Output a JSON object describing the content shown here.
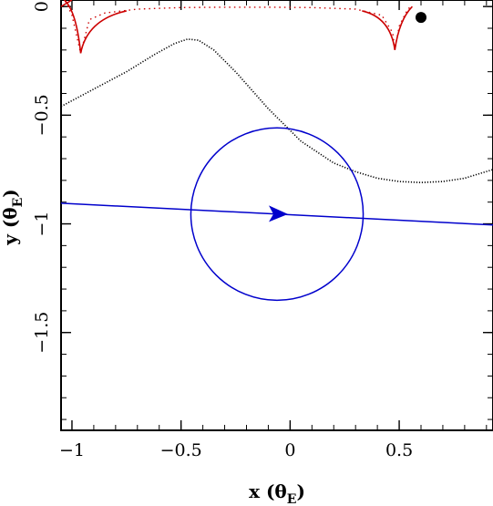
{
  "chart_data": {
    "type": "line",
    "xlabel": "x (θ",
    "xlabel_sub": "E",
    "xlabel_close": ")",
    "ylabel": "y (θ",
    "ylabel_sub": "E",
    "ylabel_close": ")",
    "xlim": [
      -1.05,
      0.93
    ],
    "ylim": [
      -1.95,
      0.03
    ],
    "x_ticks": [
      {
        "value": -1,
        "label": "−1"
      },
      {
        "value": -0.5,
        "label": "−0.5"
      },
      {
        "value": 0,
        "label": "0"
      },
      {
        "value": 0.5,
        "label": "0.5"
      }
    ],
    "y_ticks": [
      {
        "value": 0,
        "label": "0"
      },
      {
        "value": -0.5,
        "label": "−0.5"
      },
      {
        "value": -1,
        "label": "−1"
      },
      {
        "value": -1.5,
        "label": "−1.5"
      }
    ],
    "grid": false,
    "source_trajectory": {
      "color": "#0000cc",
      "x": [
        -1.05,
        0.93
      ],
      "y": [
        -0.905,
        -1.005
      ],
      "arrow_at": [
        -0.06,
        -0.953
      ]
    },
    "source_circle": {
      "color": "#0000cc",
      "center": [
        -0.06,
        -0.955
      ],
      "radius": 0.395
    },
    "caustic": {
      "color": "#cc0000",
      "solid_x": [
        -0.93,
        -0.962,
        -0.965,
        -1.0,
        -1.025,
        -1.03
      ],
      "solid_y": [
        -0.03,
        -0.1,
        -0.21,
        -0.07,
        -0.01,
        0.02
      ],
      "points": [
        {
          "x": -1.03,
          "y": 0.025
        },
        {
          "x": -1.0,
          "y": -0.04
        },
        {
          "x": -0.96,
          "y": -0.215
        },
        {
          "x": -0.92,
          "y": -0.06
        },
        {
          "x": -0.85,
          "y": -0.03
        },
        {
          "x": -0.7,
          "y": -0.012
        },
        {
          "x": -0.5,
          "y": -0.005
        },
        {
          "x": -0.3,
          "y": -0.003
        },
        {
          "x": -0.1,
          "y": -0.003
        },
        {
          "x": 0.1,
          "y": -0.005
        },
        {
          "x": 0.3,
          "y": -0.012
        },
        {
          "x": 0.42,
          "y": -0.04
        },
        {
          "x": 0.47,
          "y": -0.12
        },
        {
          "x": 0.48,
          "y": -0.2
        },
        {
          "x": 0.5,
          "y": -0.09
        },
        {
          "x": 0.53,
          "y": -0.03
        },
        {
          "x": 0.55,
          "y": 0.0
        }
      ]
    },
    "secondary_curve": {
      "color": "#000000",
      "x": [
        -1.05,
        -0.9,
        -0.75,
        -0.62,
        -0.53,
        -0.47,
        -0.42,
        -0.35,
        -0.25,
        -0.1,
        0.05,
        0.2,
        0.3,
        0.4,
        0.5,
        0.6,
        0.7,
        0.8,
        0.93
      ],
      "y": [
        -0.46,
        -0.38,
        -0.3,
        -0.22,
        -0.17,
        -0.15,
        -0.155,
        -0.2,
        -0.3,
        -0.47,
        -0.62,
        -0.72,
        -0.76,
        -0.79,
        -0.805,
        -0.81,
        -0.805,
        -0.79,
        -0.75
      ]
    },
    "lens_point": {
      "x": 0.6,
      "y": 0.0,
      "color": "#000000"
    }
  }
}
